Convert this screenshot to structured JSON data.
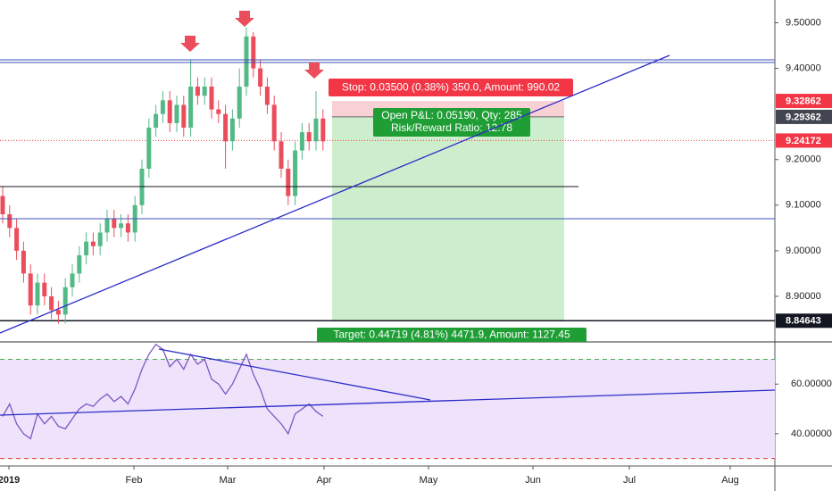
{
  "chart_data": {
    "type": "candlestick",
    "open": [
      9.12,
      9.08,
      9.05,
      9.0,
      8.95,
      8.88,
      8.93,
      8.9,
      8.87,
      8.86,
      8.92,
      8.95,
      8.99,
      9.02,
      9.01,
      9.04,
      9.07,
      9.05,
      9.06,
      9.04,
      9.1,
      9.18,
      9.27,
      9.3,
      9.33,
      9.28,
      9.32,
      9.27,
      9.36,
      9.34,
      9.36,
      9.31,
      9.3,
      9.24,
      9.29,
      9.36,
      9.47,
      9.4,
      9.36,
      9.32,
      9.24,
      9.18,
      9.12,
      9.22,
      9.26,
      9.24,
      9.29
    ],
    "high": [
      9.14,
      9.1,
      9.07,
      9.02,
      8.97,
      8.95,
      8.95,
      8.92,
      8.89,
      8.94,
      8.97,
      9.01,
      9.04,
      9.04,
      9.06,
      9.09,
      9.09,
      9.08,
      9.08,
      9.12,
      9.2,
      9.29,
      9.32,
      9.35,
      9.35,
      9.34,
      9.34,
      9.42,
      9.38,
      9.38,
      9.38,
      9.33,
      9.32,
      9.31,
      9.4,
      9.49,
      9.48,
      9.42,
      9.38,
      9.34,
      9.26,
      9.2,
      9.24,
      9.28,
      9.28,
      9.35,
      9.31
    ],
    "low": [
      9.06,
      9.03,
      8.98,
      8.93,
      8.86,
      8.86,
      8.88,
      8.85,
      8.84,
      8.84,
      8.9,
      8.93,
      8.97,
      8.99,
      8.99,
      9.02,
      9.03,
      9.03,
      9.02,
      9.02,
      9.08,
      9.16,
      9.25,
      9.28,
      9.26,
      9.26,
      9.25,
      9.25,
      9.32,
      9.32,
      9.29,
      9.28,
      9.18,
      9.22,
      9.27,
      9.34,
      9.38,
      9.34,
      9.3,
      9.22,
      9.16,
      9.1,
      9.1,
      9.2,
      9.22,
      9.22,
      9.22
    ],
    "close": [
      9.08,
      9.05,
      9.0,
      8.95,
      8.88,
      8.93,
      8.9,
      8.87,
      8.86,
      8.92,
      8.95,
      8.99,
      9.02,
      9.01,
      9.04,
      9.07,
      9.05,
      9.06,
      9.04,
      9.1,
      9.18,
      9.27,
      9.3,
      9.33,
      9.28,
      9.32,
      9.27,
      9.36,
      9.34,
      9.36,
      9.31,
      9.3,
      9.24,
      9.29,
      9.36,
      9.47,
      9.4,
      9.36,
      9.32,
      9.24,
      9.18,
      9.12,
      9.22,
      9.26,
      9.24,
      9.29,
      9.24
    ],
    "up_color": "#53b987",
    "down_color": "#eb4d5c",
    "ylim": [
      8.8,
      9.55
    ],
    "yticks": [
      {
        "value": 9.5,
        "label": "9.50000"
      },
      {
        "value": 9.4,
        "label": "9.40000"
      },
      {
        "value": 9.2,
        "label": "9.20000"
      },
      {
        "value": 9.1,
        "label": "9.10000"
      },
      {
        "value": 9.0,
        "label": "9.00000"
      },
      {
        "value": 8.9,
        "label": "8.90000"
      }
    ],
    "price_tags": [
      {
        "value": 9.32862,
        "label": "9.32862",
        "color": "#f23645"
      },
      {
        "value": 9.29362,
        "label": "9.29362",
        "color": "#434651"
      },
      {
        "value": 9.24172,
        "label": "9.24172",
        "color": "#f23645"
      },
      {
        "value": 8.84643,
        "label": "8.84643",
        "color": "#131722"
      }
    ],
    "stop_label": "Stop: 0.03500 (0.38%) 350.0, Amount: 990.02",
    "pnl_label": [
      "Open P&L: 0.05190, Qty: 285",
      "Risk/Reward Ratio: 12.78"
    ],
    "target_label": "Target: 0.44719 (4.81%) 4471.9, Amount: 1127.45",
    "rsi": {
      "values": [
        47,
        52,
        44,
        40,
        38,
        48,
        44,
        47,
        43,
        42,
        46,
        50,
        52,
        51,
        54,
        56,
        53,
        55,
        52,
        58,
        66,
        72,
        76,
        74,
        67,
        70,
        66,
        72,
        68,
        70,
        62,
        60,
        56,
        60,
        66,
        72,
        64,
        58,
        50,
        47,
        44,
        40,
        48,
        50,
        52,
        49,
        47
      ],
      "color": "#7e57c2",
      "ylim": [
        27,
        77
      ],
      "yticks": [
        {
          "value": 60,
          "label": "60.00000"
        },
        {
          "value": 40,
          "label": "40.00000"
        }
      ],
      "upper": 70,
      "lower": 30
    },
    "x_labels": [
      "2019",
      "Feb",
      "Mar",
      "Apr",
      "May",
      "Jun",
      "Jul",
      "Aug"
    ]
  }
}
